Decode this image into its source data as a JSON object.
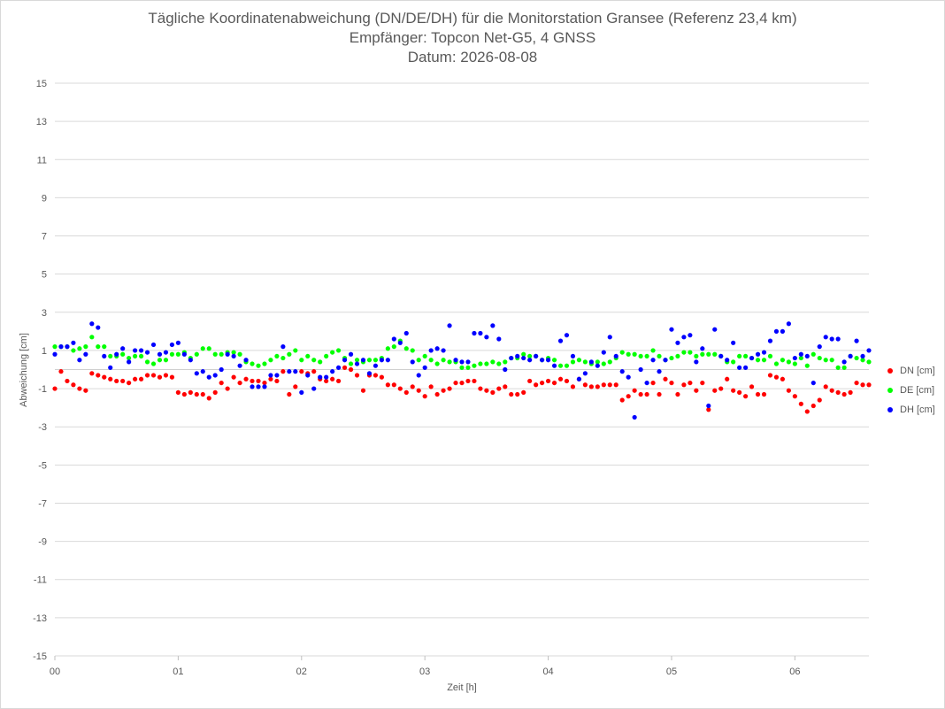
{
  "chart_data": {
    "type": "scatter",
    "title_lines": [
      "Tägliche Koordinatenabweichung (DN/DE/DH) für die Monitorstation Gransee (Referenz 23,4 km)",
      "Empfänger: Topcon Net-G5, 4 GNSS",
      "Datum: 2026-08-08"
    ],
    "xlabel": "Zeit [h]",
    "ylabel": "Abweichung [cm]",
    "xlim": [
      0,
      6.6
    ],
    "ylim": [
      -15,
      15
    ],
    "x_ticks": [
      0,
      1,
      2,
      3,
      4,
      5,
      6
    ],
    "x_tick_labels": [
      "00",
      "01",
      "02",
      "03",
      "04",
      "05",
      "06"
    ],
    "y_ticks": [
      15,
      13,
      11,
      9,
      7,
      5,
      3,
      1,
      -1,
      -3,
      -5,
      -7,
      -9,
      -11,
      -13,
      -15
    ],
    "y_tick_labels": [
      "15",
      "13",
      "11",
      "9",
      "7",
      "5",
      "3",
      "1",
      "-1",
      "-3",
      "-5",
      "-7",
      "-9",
      "-11",
      "-13",
      "-15"
    ],
    "grid": true,
    "legend_position": "right",
    "x": [
      0.0,
      0.05,
      0.1,
      0.15,
      0.2,
      0.25,
      0.3,
      0.35,
      0.4,
      0.45,
      0.5,
      0.55,
      0.6,
      0.65,
      0.7,
      0.75,
      0.8,
      0.85,
      0.9,
      0.95,
      1.0,
      1.05,
      1.1,
      1.15,
      1.2,
      1.25,
      1.3,
      1.35,
      1.4,
      1.45,
      1.5,
      1.55,
      1.6,
      1.65,
      1.7,
      1.75,
      1.8,
      1.85,
      1.9,
      1.95,
      2.0,
      2.05,
      2.1,
      2.15,
      2.2,
      2.25,
      2.3,
      2.35,
      2.4,
      2.45,
      2.5,
      2.55,
      2.6,
      2.65,
      2.7,
      2.75,
      2.8,
      2.85,
      2.9,
      2.95,
      3.0,
      3.05,
      3.1,
      3.15,
      3.2,
      3.25,
      3.3,
      3.35,
      3.4,
      3.45,
      3.5,
      3.55,
      3.6,
      3.65,
      3.7,
      3.75,
      3.8,
      3.85,
      3.9,
      3.95,
      4.0,
      4.05,
      4.1,
      4.15,
      4.2,
      4.25,
      4.3,
      4.35,
      4.4,
      4.45,
      4.5,
      4.55,
      4.6,
      4.65,
      4.7,
      4.75,
      4.8,
      4.85,
      4.9,
      4.95,
      5.0,
      5.05,
      5.1,
      5.15,
      5.2,
      5.25,
      5.3,
      5.35,
      5.4,
      5.45,
      5.5,
      5.55,
      5.6,
      5.65,
      5.7,
      5.75,
      5.8,
      5.85,
      5.9,
      5.95,
      6.0,
      6.05,
      6.1,
      6.15,
      6.2,
      6.25,
      6.3,
      6.35,
      6.4,
      6.45,
      6.5,
      6.55,
      6.6
    ],
    "series": [
      {
        "name": "DN [cm]",
        "color": "#ff0000",
        "values": [
          -1.0,
          -0.1,
          -0.6,
          -0.8,
          -1.0,
          -1.1,
          -0.2,
          -0.3,
          -0.4,
          -0.5,
          -0.6,
          -0.6,
          -0.7,
          -0.5,
          -0.5,
          -0.3,
          -0.3,
          -0.4,
          -0.3,
          -0.4,
          -1.2,
          -1.3,
          -1.2,
          -1.3,
          -1.3,
          -1.5,
          -1.2,
          -0.7,
          -1.0,
          -0.4,
          -0.7,
          -0.5,
          -0.6,
          -0.6,
          -0.7,
          -0.5,
          -0.6,
          -0.1,
          -1.3,
          -0.9,
          -0.1,
          -0.2,
          -0.1,
          -0.5,
          -0.6,
          -0.5,
          -0.6,
          0.1,
          0.0,
          -0.3,
          -1.1,
          -0.3,
          -0.3,
          -0.4,
          -0.8,
          -0.8,
          -1.0,
          -1.2,
          -0.9,
          -1.1,
          -1.4,
          -0.9,
          -1.3,
          -1.1,
          -1.0,
          -0.7,
          -0.7,
          -0.6,
          -0.6,
          -1.0,
          -1.1,
          -1.2,
          -1.0,
          -0.9,
          -1.3,
          -1.3,
          -1.2,
          -0.6,
          -0.8,
          -0.7,
          -0.6,
          -0.7,
          -0.5,
          -0.6,
          -0.9,
          -0.5,
          -0.8,
          -0.9,
          -0.9,
          -0.8,
          -0.8,
          -0.8,
          -1.6,
          -1.4,
          -1.1,
          -1.3,
          -1.3,
          -0.7,
          -1.3,
          -0.5,
          -0.7,
          -1.3,
          -0.8,
          -0.7,
          -1.1,
          -0.7,
          -2.1,
          -1.1,
          -1.0,
          -0.5,
          -1.1,
          -1.2,
          -1.4,
          -0.9,
          -1.3,
          -1.3,
          -0.3,
          -0.4,
          -0.5,
          -1.1,
          -1.4,
          -1.8,
          -2.2,
          -1.9,
          -1.6,
          -0.9,
          -1.1,
          -1.2,
          -1.3,
          -1.2,
          -0.7,
          -0.8,
          -0.8
        ]
      },
      {
        "name": "DE [cm]",
        "color": "#00ff00",
        "values": [
          1.2,
          1.2,
          1.2,
          1.0,
          1.1,
          1.2,
          1.7,
          1.2,
          1.2,
          0.7,
          0.7,
          0.8,
          0.6,
          0.7,
          0.7,
          0.4,
          0.3,
          0.5,
          0.5,
          0.8,
          0.8,
          0.9,
          0.6,
          0.8,
          1.1,
          1.1,
          0.8,
          0.8,
          0.9,
          0.9,
          0.8,
          0.4,
          0.3,
          0.2,
          0.3,
          0.5,
          0.7,
          0.6,
          0.8,
          1.0,
          0.5,
          0.7,
          0.5,
          0.4,
          0.7,
          0.9,
          1.0,
          0.6,
          0.3,
          0.5,
          0.4,
          0.5,
          0.5,
          0.6,
          1.1,
          1.2,
          1.5,
          1.1,
          1.0,
          0.5,
          0.7,
          0.5,
          0.3,
          0.5,
          0.4,
          0.4,
          0.1,
          0.1,
          0.2,
          0.3,
          0.3,
          0.4,
          0.3,
          0.4,
          0.6,
          0.6,
          0.8,
          0.7,
          0.7,
          0.5,
          0.6,
          0.5,
          0.2,
          0.2,
          0.4,
          0.5,
          0.4,
          0.3,
          0.4,
          0.3,
          0.4,
          0.6,
          0.9,
          0.8,
          0.8,
          0.7,
          0.7,
          1.0,
          0.7,
          0.5,
          0.6,
          0.7,
          0.9,
          0.9,
          0.7,
          0.8,
          0.8,
          0.8,
          0.7,
          0.4,
          0.4,
          0.7,
          0.7,
          0.6,
          0.5,
          0.5,
          0.7,
          0.3,
          0.5,
          0.4,
          0.3,
          0.6,
          0.2,
          0.8,
          0.6,
          0.5,
          0.5,
          0.1,
          0.1,
          0.7,
          0.6,
          0.5,
          0.4
        ]
      },
      {
        "name": "DH [cm]",
        "color": "#0000ff",
        "values": [
          0.8,
          1.2,
          1.2,
          1.4,
          0.5,
          0.8,
          2.4,
          2.2,
          0.7,
          0.1,
          0.8,
          1.1,
          0.4,
          1.0,
          1.0,
          0.9,
          1.3,
          0.8,
          0.9,
          1.3,
          1.4,
          0.8,
          0.5,
          -0.2,
          -0.1,
          -0.4,
          -0.3,
          0.0,
          0.8,
          0.7,
          0.2,
          0.5,
          -0.9,
          -0.9,
          -0.9,
          -0.3,
          -0.3,
          1.2,
          -0.1,
          -0.1,
          -1.2,
          -0.3,
          -1.0,
          -0.4,
          -0.4,
          -0.1,
          0.1,
          0.5,
          0.8,
          0.3,
          0.5,
          -0.2,
          0.2,
          0.5,
          0.5,
          1.6,
          1.4,
          1.9,
          0.4,
          -0.3,
          0.1,
          1.0,
          1.1,
          1.0,
          2.3,
          0.5,
          0.4,
          0.4,
          1.9,
          1.9,
          1.7,
          2.3,
          1.6,
          0.0,
          0.6,
          0.7,
          0.6,
          0.5,
          0.7,
          0.5,
          0.5,
          0.2,
          1.5,
          1.8,
          0.7,
          -0.5,
          -0.2,
          0.4,
          0.2,
          0.9,
          1.7,
          0.7,
          -0.1,
          -0.4,
          -2.5,
          0.0,
          -0.7,
          0.5,
          -0.1,
          0.5,
          2.1,
          1.4,
          1.7,
          1.8,
          0.4,
          1.1,
          -1.9,
          2.1,
          0.7,
          0.5,
          1.4,
          0.1,
          0.1,
          0.6,
          0.8,
          0.9,
          1.5,
          2.0,
          2.0,
          2.4,
          0.6,
          0.8,
          0.7,
          -0.7,
          1.2,
          1.7,
          1.6,
          1.6,
          0.4,
          0.7,
          1.5,
          0.7,
          1.0
        ]
      }
    ]
  }
}
